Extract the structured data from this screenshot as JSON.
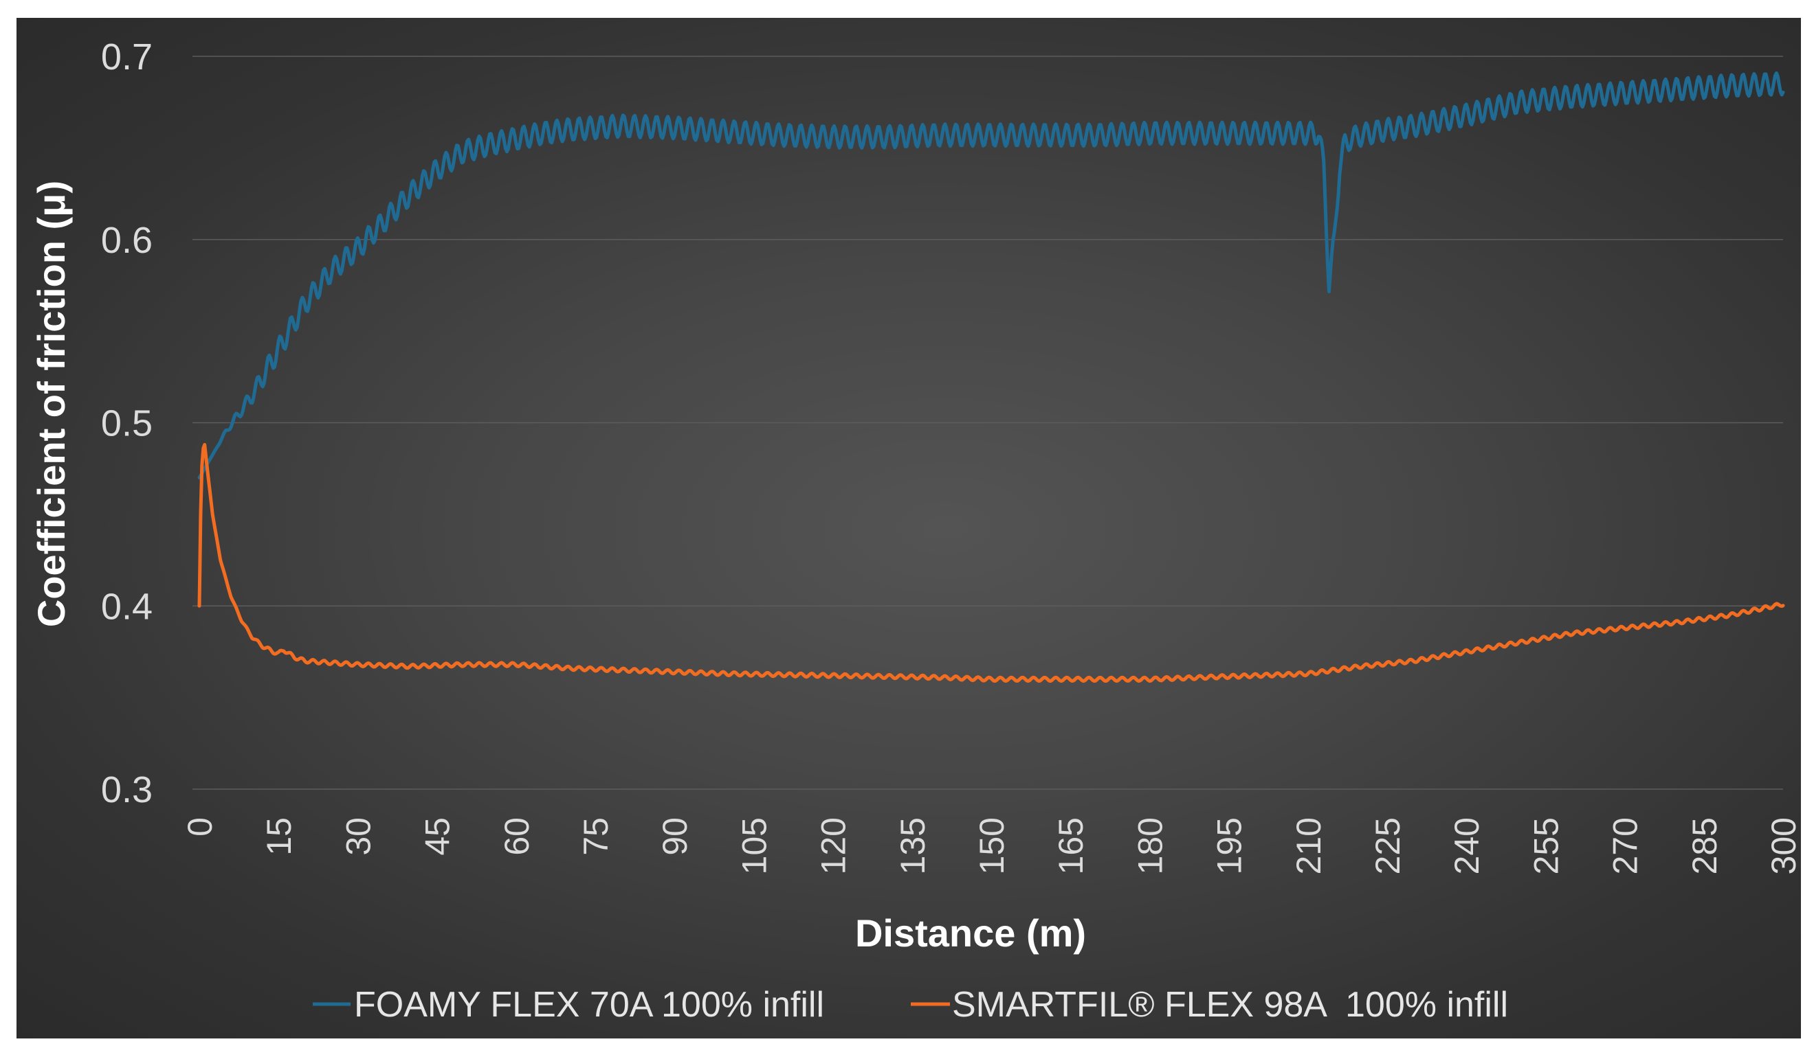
{
  "chart_data": {
    "type": "line",
    "title": "",
    "xlabel": "Distance (m)",
    "ylabel": "Coefficient of friction (μ)",
    "xlim": [
      0,
      300
    ],
    "ylim": [
      0.3,
      0.7
    ],
    "xticks": [
      "0",
      "15",
      "30",
      "45",
      "60",
      "75",
      "90",
      "105",
      "120",
      "135",
      "150",
      "165",
      "180",
      "195",
      "210",
      "225",
      "240",
      "255",
      "270",
      "285",
      "300"
    ],
    "yticks": [
      "0.3",
      "0.4",
      "0.5",
      "0.6",
      "0.7"
    ],
    "grid": "horizontal",
    "legend": "bottom",
    "series": [
      {
        "name": "FOAMY FLEX 70A 100% infill",
        "color": "#1f6b93",
        "oscillation": 0.006,
        "x": [
          0,
          2,
          5,
          10,
          15,
          20,
          25,
          30,
          35,
          40,
          45,
          50,
          55,
          60,
          65,
          70,
          80,
          90,
          100,
          110,
          120,
          130,
          140,
          150,
          160,
          170,
          180,
          190,
          200,
          210,
          212,
          213,
          214,
          215,
          216,
          217,
          218,
          220,
          225,
          230,
          240,
          250,
          260,
          270,
          280,
          290,
          300
        ],
        "y": [
          0.47,
          0.48,
          0.495,
          0.515,
          0.54,
          0.565,
          0.583,
          0.595,
          0.61,
          0.625,
          0.638,
          0.648,
          0.652,
          0.655,
          0.658,
          0.66,
          0.662,
          0.661,
          0.659,
          0.657,
          0.656,
          0.656,
          0.657,
          0.657,
          0.657,
          0.657,
          0.658,
          0.658,
          0.658,
          0.658,
          0.658,
          0.64,
          0.575,
          0.6,
          0.64,
          0.652,
          0.655,
          0.657,
          0.66,
          0.662,
          0.668,
          0.675,
          0.678,
          0.68,
          0.682,
          0.684,
          0.685
        ]
      },
      {
        "name": "SMARTFIL® FLEX 98A  100% infill",
        "color": "#f26d21",
        "oscillation": 0.001,
        "x": [
          0,
          0.3,
          0.6,
          1.0,
          1.5,
          2.5,
          4,
          6,
          8,
          10,
          12,
          14,
          15,
          16,
          18,
          20,
          25,
          30,
          40,
          50,
          60,
          70,
          80,
          90,
          100,
          120,
          140,
          150,
          160,
          170,
          180,
          190,
          200,
          210,
          220,
          230,
          240,
          250,
          260,
          270,
          280,
          290,
          300
        ],
        "y": [
          0.4,
          0.46,
          0.485,
          0.488,
          0.475,
          0.45,
          0.425,
          0.405,
          0.392,
          0.383,
          0.378,
          0.375,
          0.374,
          0.376,
          0.372,
          0.37,
          0.369,
          0.368,
          0.367,
          0.368,
          0.368,
          0.366,
          0.365,
          0.364,
          0.363,
          0.362,
          0.361,
          0.36,
          0.36,
          0.36,
          0.36,
          0.361,
          0.362,
          0.363,
          0.367,
          0.37,
          0.375,
          0.38,
          0.385,
          0.388,
          0.391,
          0.395,
          0.401
        ]
      }
    ]
  }
}
